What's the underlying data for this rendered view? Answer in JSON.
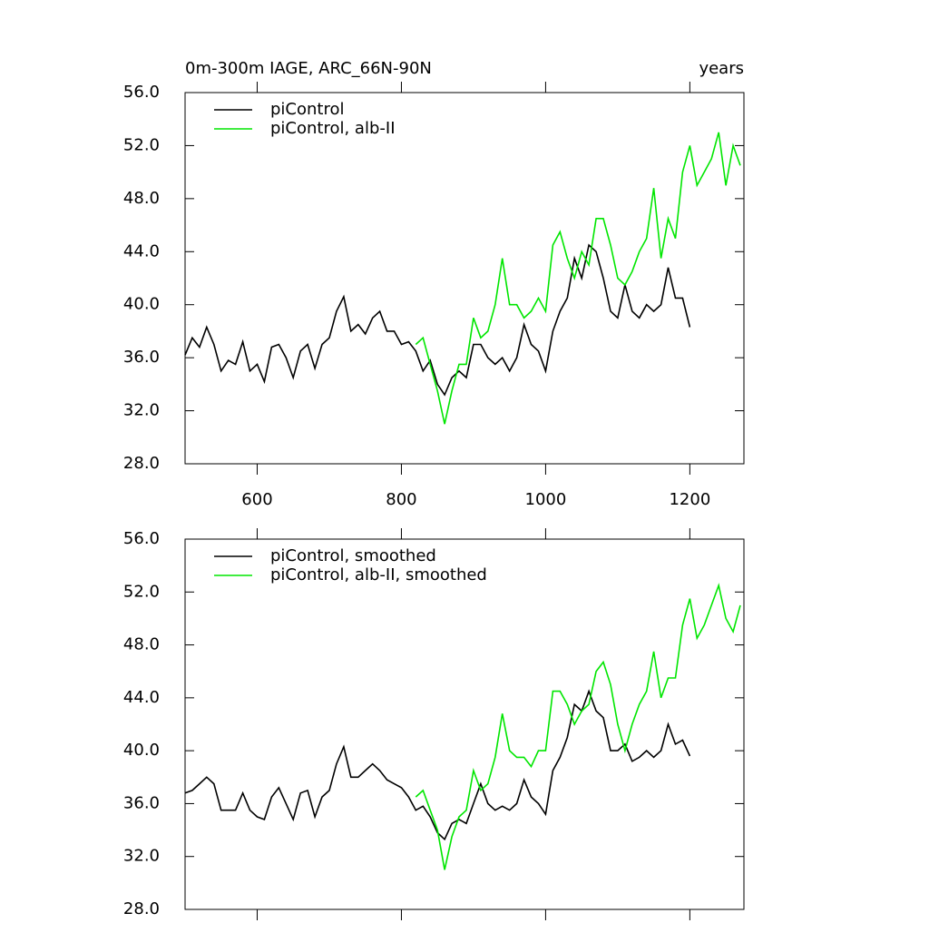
{
  "chart_data": [
    {
      "type": "line",
      "title": "0m-300m IAGE, ARC_66N-90N",
      "subtitle": "years",
      "x": [
        500,
        510,
        520,
        530,
        540,
        550,
        560,
        570,
        580,
        590,
        600,
        610,
        620,
        630,
        640,
        650,
        660,
        670,
        680,
        690,
        700,
        710,
        720,
        730,
        740,
        750,
        760,
        770,
        780,
        790,
        800,
        810,
        820,
        830,
        840,
        850,
        860,
        870,
        880,
        890,
        900,
        910,
        920,
        930,
        940,
        950,
        960,
        970,
        980,
        990,
        1000,
        1010,
        1020,
        1030,
        1040,
        1050,
        1060,
        1070,
        1080,
        1090,
        1100,
        1110,
        1120,
        1130,
        1140,
        1150,
        1160,
        1170,
        1180,
        1190,
        1200,
        1210,
        1220,
        1230,
        1240,
        1250,
        1260,
        1270
      ],
      "series": [
        {
          "name": "piControl",
          "color": "#000000",
          "values": [
            36.2,
            37.5,
            36.8,
            38.3,
            37.0,
            35.0,
            35.8,
            35.5,
            37.2,
            35.0,
            35.5,
            34.2,
            36.8,
            37.0,
            36.0,
            34.5,
            36.5,
            37.0,
            35.2,
            37.0,
            37.5,
            39.5,
            40.6,
            38.0,
            38.5,
            37.8,
            39.0,
            39.5,
            38.0,
            38.0,
            37.0,
            37.2,
            36.5,
            35.0,
            35.8,
            34.0,
            33.2,
            34.5,
            35.0,
            34.5,
            37.0,
            37.0,
            36.0,
            35.5,
            36.0,
            35.0,
            36.0,
            38.5,
            37.0,
            36.5,
            35.0,
            38.0,
            39.5,
            40.5,
            43.5,
            42.0,
            44.5,
            44.0,
            42.0,
            39.5,
            39.0,
            41.5,
            39.5,
            39.0,
            40.0,
            39.5,
            40.0,
            42.8,
            40.5,
            40.5,
            38.3,
            null,
            null,
            null,
            null,
            null,
            null,
            null
          ]
        },
        {
          "name": "piControl, alb-II",
          "color": "#00e600",
          "values": [
            null,
            null,
            null,
            null,
            null,
            null,
            null,
            null,
            null,
            null,
            null,
            null,
            null,
            null,
            null,
            null,
            null,
            null,
            null,
            null,
            null,
            null,
            null,
            null,
            null,
            null,
            null,
            null,
            null,
            null,
            null,
            null,
            37.0,
            37.5,
            35.5,
            33.5,
            31.0,
            33.5,
            35.5,
            35.5,
            39.0,
            37.5,
            38.0,
            40.0,
            43.5,
            40.0,
            40.0,
            39.0,
            39.5,
            40.5,
            39.5,
            44.5,
            45.5,
            43.5,
            42.0,
            44.0,
            43.0,
            46.5,
            46.5,
            44.5,
            42.0,
            41.5,
            42.5,
            44.0,
            45.0,
            48.8,
            43.5,
            46.5,
            45.0,
            50.0,
            52.0,
            49.0,
            50.0,
            51.0,
            53.0,
            49.0,
            52.0,
            50.5
          ]
        }
      ],
      "xlim": [
        500,
        1275
      ],
      "xticks": [
        600,
        800,
        1000,
        1200
      ],
      "xtick_labels": true,
      "ylim": [
        28,
        56
      ],
      "yticks": [
        {
          "value": 28,
          "label": "28.0"
        },
        {
          "value": 32,
          "label": "32.0"
        },
        {
          "value": 36,
          "label": "36.0"
        },
        {
          "value": 40,
          "label": "40.0"
        },
        {
          "value": 44,
          "label": "44.0"
        },
        {
          "value": 48,
          "label": "48.0"
        },
        {
          "value": 52,
          "label": "52.0"
        },
        {
          "value": 56,
          "label": "56.0"
        }
      ],
      "legend": "top-left"
    },
    {
      "type": "line",
      "x": [
        500,
        510,
        520,
        530,
        540,
        550,
        560,
        570,
        580,
        590,
        600,
        610,
        620,
        630,
        640,
        650,
        660,
        670,
        680,
        690,
        700,
        710,
        720,
        730,
        740,
        750,
        760,
        770,
        780,
        790,
        800,
        810,
        820,
        830,
        840,
        850,
        860,
        870,
        880,
        890,
        900,
        910,
        920,
        930,
        940,
        950,
        960,
        970,
        980,
        990,
        1000,
        1010,
        1020,
        1030,
        1040,
        1050,
        1060,
        1070,
        1080,
        1090,
        1100,
        1110,
        1120,
        1130,
        1140,
        1150,
        1160,
        1170,
        1180,
        1190,
        1200,
        1210,
        1220,
        1230,
        1240,
        1250,
        1260,
        1270
      ],
      "series": [
        {
          "name": "piControl, smoothed",
          "color": "#000000",
          "values": [
            36.8,
            37.0,
            37.5,
            38.0,
            37.5,
            35.5,
            35.5,
            35.5,
            36.8,
            35.5,
            35.0,
            34.8,
            36.5,
            37.2,
            36.0,
            34.8,
            36.8,
            37.0,
            35.0,
            36.5,
            37.0,
            39.0,
            40.3,
            38.0,
            38.0,
            38.5,
            39.0,
            38.5,
            37.8,
            37.5,
            37.2,
            36.5,
            35.5,
            35.8,
            35.0,
            33.8,
            33.3,
            34.5,
            34.8,
            34.5,
            36.0,
            37.5,
            36.0,
            35.5,
            35.8,
            35.5,
            36.0,
            37.8,
            36.5,
            36.0,
            35.2,
            38.5,
            39.5,
            41.0,
            43.5,
            43.0,
            44.5,
            43.0,
            42.5,
            40.0,
            40.0,
            40.5,
            39.2,
            39.5,
            40.0,
            39.5,
            40.0,
            42.0,
            40.5,
            40.8,
            39.6,
            null,
            null,
            null,
            null,
            null,
            null,
            null
          ]
        },
        {
          "name": "piControl, alb-II, smoothed",
          "color": "#00e600",
          "values": [
            null,
            null,
            null,
            null,
            null,
            null,
            null,
            null,
            null,
            null,
            null,
            null,
            null,
            null,
            null,
            null,
            null,
            null,
            null,
            null,
            null,
            null,
            null,
            null,
            null,
            null,
            null,
            null,
            null,
            null,
            null,
            null,
            36.5,
            37.0,
            35.5,
            34.0,
            31.0,
            33.5,
            35.0,
            35.5,
            38.5,
            37.0,
            37.5,
            39.5,
            42.8,
            40.0,
            39.5,
            39.5,
            38.8,
            40.0,
            40.0,
            44.5,
            44.5,
            43.5,
            42.0,
            43.0,
            43.5,
            46.0,
            46.7,
            45.0,
            42.0,
            40.0,
            42.0,
            43.5,
            44.5,
            47.5,
            44.0,
            45.5,
            45.5,
            49.5,
            51.5,
            48.5,
            49.5,
            51.0,
            52.5,
            50.0,
            49.0,
            51.0
          ]
        }
      ],
      "xlim": [
        500,
        1275
      ],
      "xticks": [
        600,
        800,
        1000,
        1200
      ],
      "xtick_labels": false,
      "ylim": [
        28,
        56
      ],
      "yticks": [
        {
          "value": 28,
          "label": "28.0"
        },
        {
          "value": 32,
          "label": "32.0"
        },
        {
          "value": 36,
          "label": "36.0"
        },
        {
          "value": 40,
          "label": "40.0"
        },
        {
          "value": 44,
          "label": "44.0"
        },
        {
          "value": 48,
          "label": "48.0"
        },
        {
          "value": 52,
          "label": "52.0"
        },
        {
          "value": 56,
          "label": "56.0"
        }
      ],
      "legend": "top-left"
    }
  ]
}
